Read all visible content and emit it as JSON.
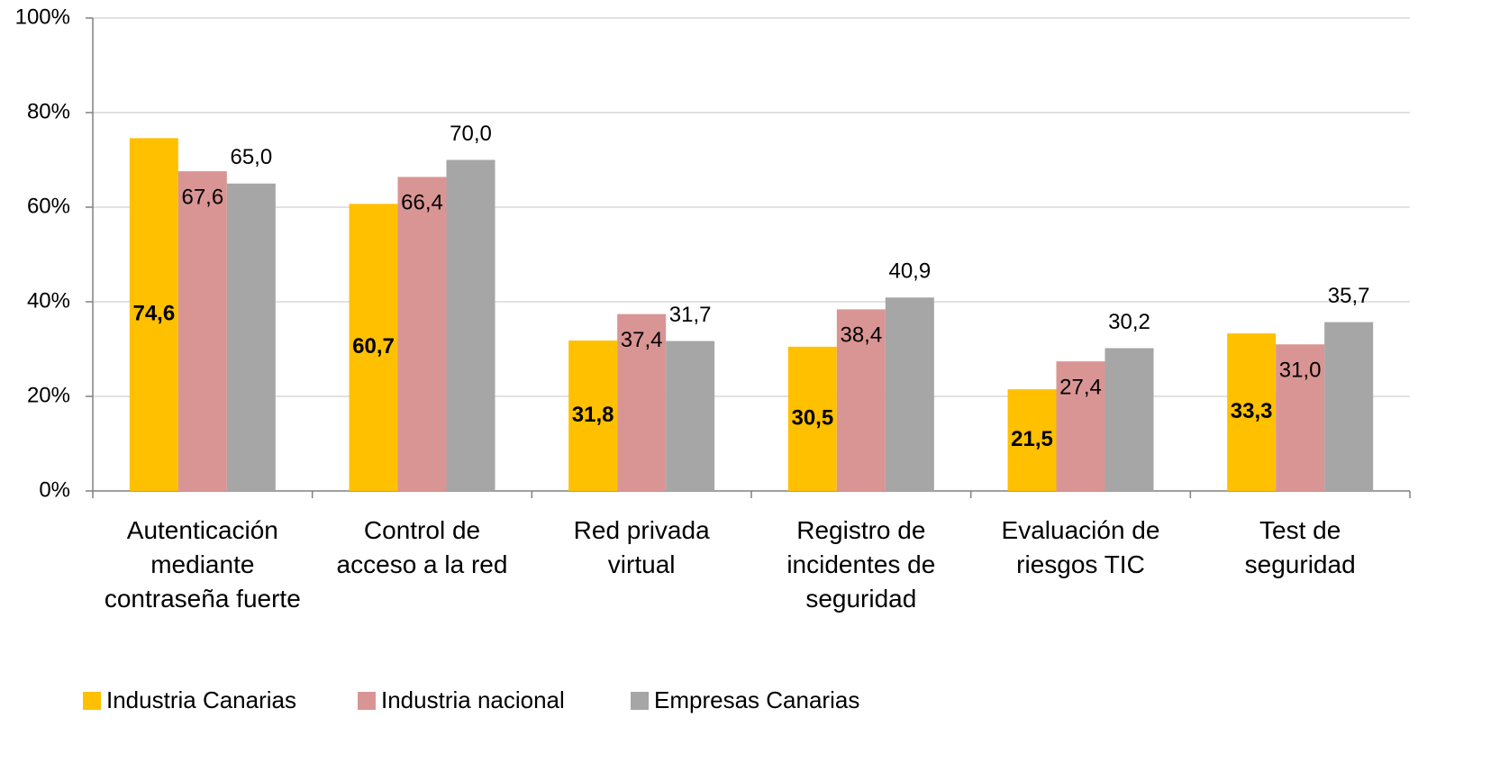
{
  "chart_data": {
    "type": "bar",
    "categories": [
      "Autenticación mediante contraseña fuerte",
      "Control de acceso a la red",
      "Red privada virtual",
      "Registro de incidentes de seguridad",
      "Evaluación de riesgos TIC",
      "Test de seguridad"
    ],
    "series": [
      {
        "name": "Industria Canarias",
        "color": "#ffc000",
        "values": [
          74.6,
          60.7,
          31.8,
          30.5,
          21.5,
          33.3
        ],
        "value_labels": [
          "74,6",
          "60,7",
          "31,8",
          "30,5",
          "21,5",
          "33,3"
        ]
      },
      {
        "name": "Industria nacional",
        "color": "#d99594",
        "values": [
          67.6,
          66.4,
          37.4,
          38.4,
          27.4,
          31.0
        ],
        "value_labels": [
          "67,6",
          "66,4",
          "37,4",
          "38,4",
          "27,4",
          "31,0"
        ]
      },
      {
        "name": "Empresas Canarias",
        "color": "#a6a6a6",
        "values": [
          65.0,
          70.0,
          31.7,
          40.9,
          30.2,
          35.7
        ],
        "value_labels": [
          "65,0",
          "70,0",
          "31,7",
          "40,9",
          "30,2",
          "35,7"
        ]
      }
    ],
    "ylim": [
      0,
      100
    ],
    "yticks": [
      {
        "value": 0,
        "label": "0%"
      },
      {
        "value": 20,
        "label": "20%"
      },
      {
        "value": 40,
        "label": "40%"
      },
      {
        "value": 60,
        "label": "60%"
      },
      {
        "value": 80,
        "label": "80%"
      },
      {
        "value": 100,
        "label": "100%"
      }
    ],
    "grid": true,
    "legend": "bottom"
  }
}
